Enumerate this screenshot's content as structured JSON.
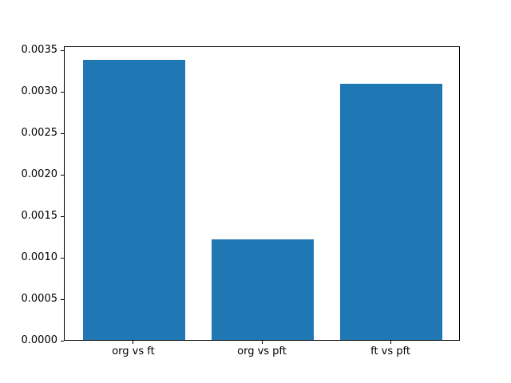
{
  "chart_data": {
    "type": "bar",
    "categories": [
      "org vs ft",
      "org vs pft",
      "ft vs pft"
    ],
    "values": [
      0.00338,
      0.00121,
      0.00309
    ],
    "title": "",
    "xlabel": "",
    "ylabel": "",
    "ylim": [
      0,
      0.003549
    ],
    "xlim": [
      -0.54,
      2.54
    ],
    "bar_width": 0.8,
    "yticks": [
      0.0,
      0.0005,
      0.001,
      0.0015,
      0.002,
      0.0025,
      0.003,
      0.0035
    ],
    "ytick_decimals": 4,
    "bar_color": "#1f77b4",
    "axis_color": "#000000",
    "background_color": "#ffffff",
    "grid": false,
    "legend_position": "none"
  }
}
